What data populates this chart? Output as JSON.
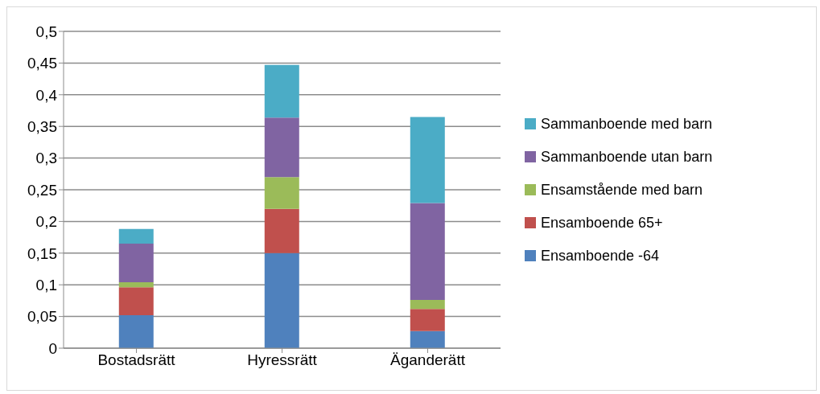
{
  "chart_data": {
    "type": "bar",
    "stacked": true,
    "categories": [
      "Bostadsrätt",
      "Hyressrätt",
      "Äganderätt"
    ],
    "series": [
      {
        "name": "Ensamboende -64",
        "color": "#4f81bd",
        "values": [
          0.052,
          0.15,
          0.027
        ]
      },
      {
        "name": "Ensamboende 65+",
        "color": "#c0504d",
        "values": [
          0.044,
          0.07,
          0.035
        ]
      },
      {
        "name": "Ensamstående med barn",
        "color": "#9bbb59",
        "values": [
          0.008,
          0.05,
          0.014
        ]
      },
      {
        "name": "Sammanboende utan barn",
        "color": "#8064a2",
        "values": [
          0.061,
          0.094,
          0.153
        ]
      },
      {
        "name": "Sammanboende med barn",
        "color": "#4bacc6",
        "values": [
          0.023,
          0.083,
          0.136
        ]
      }
    ],
    "ylim": [
      0,
      0.5
    ],
    "yticks": [
      0,
      {
        "value": 0.05,
        "label": "0,05"
      },
      {
        "value": 0.1,
        "label": "0,1"
      },
      {
        "value": 0.15,
        "label": "0,15"
      },
      {
        "value": 0.2,
        "label": "0,2"
      },
      {
        "value": 0.25,
        "label": "0,25"
      },
      {
        "value": 0.3,
        "label": "0,3"
      },
      {
        "value": 0.35,
        "label": "0,35"
      },
      {
        "value": 0.4,
        "label": "0,4"
      },
      {
        "value": 0.45,
        "label": "0,45"
      },
      {
        "value": 0.5,
        "label": "0,5"
      }
    ],
    "grid": "y",
    "legend": "right"
  }
}
